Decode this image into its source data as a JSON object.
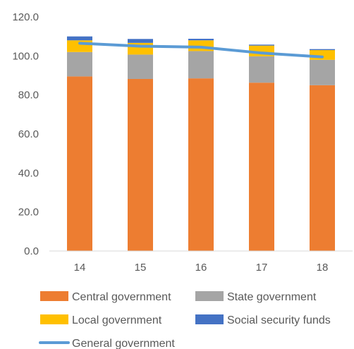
{
  "chart_data": {
    "type": "bar",
    "stacked": true,
    "categories": [
      "14",
      "15",
      "16",
      "17",
      "18"
    ],
    "series": [
      {
        "name": "Central government",
        "type": "bar",
        "color": "#ED7D31",
        "values": [
          89.5,
          88.2,
          88.5,
          86.3,
          85.0
        ]
      },
      {
        "name": "State government",
        "type": "bar",
        "color": "#A5A5A5",
        "values": [
          12.5,
          12.5,
          14.0,
          13.5,
          13.0
        ]
      },
      {
        "name": "Local government",
        "type": "bar",
        "color": "#FFC000",
        "values": [
          6.0,
          6.0,
          5.5,
          5.5,
          5.0
        ]
      },
      {
        "name": "Social security funds",
        "type": "bar",
        "color": "#4472C4",
        "values": [
          2.0,
          2.0,
          0.8,
          0.5,
          0.5
        ]
      },
      {
        "name": "General government",
        "type": "line",
        "color": "#5B9BD5",
        "values": [
          106.5,
          105.0,
          104.5,
          101.5,
          99.5
        ]
      }
    ],
    "ylim": [
      0,
      120
    ],
    "yticks": [
      "0.0",
      "20.0",
      "40.0",
      "60.0",
      "80.0",
      "100.0",
      "120.0"
    ],
    "grid": false,
    "legend_position": "bottom"
  }
}
